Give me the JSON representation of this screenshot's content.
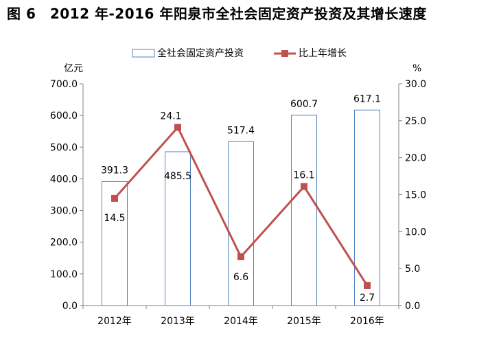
{
  "chart_data": {
    "type": "bar+line",
    "title": "图 6　2012 年-2016 年阳泉市全社会固定资产投资及其增长速度",
    "categories": [
      "2012年",
      "2013年",
      "2014年",
      "2015年",
      "2016年"
    ],
    "series": [
      {
        "name": "全社会固定资产投资",
        "type": "bar",
        "axis": "left",
        "values": [
          391.3,
          485.5,
          517.4,
          600.7,
          617.1
        ],
        "color": "#4f81bd"
      },
      {
        "name": "比上年增长",
        "type": "line",
        "axis": "right",
        "values": [
          14.5,
          24.1,
          6.6,
          16.1,
          2.7
        ],
        "color": "#c0504d"
      }
    ],
    "y_left": {
      "unit": "亿元",
      "min": 0,
      "max": 700,
      "ticks": [
        "0.0",
        "100.0",
        "200.0",
        "300.0",
        "400.0",
        "500.0",
        "600.0",
        "700.0"
      ]
    },
    "y_right": {
      "unit": "%",
      "min": 0,
      "max": 30,
      "ticks": [
        "0.0",
        "5.0",
        "10.0",
        "15.0",
        "20.0",
        "25.0",
        "30.0"
      ]
    },
    "bar_labels": [
      "391.3",
      "485.5",
      "517.4",
      "600.7",
      "617.1"
    ],
    "line_labels": [
      "14.5",
      "24.1",
      "6.6",
      "16.1",
      "2.7"
    ],
    "legend_position": "top-center",
    "grid": false
  }
}
